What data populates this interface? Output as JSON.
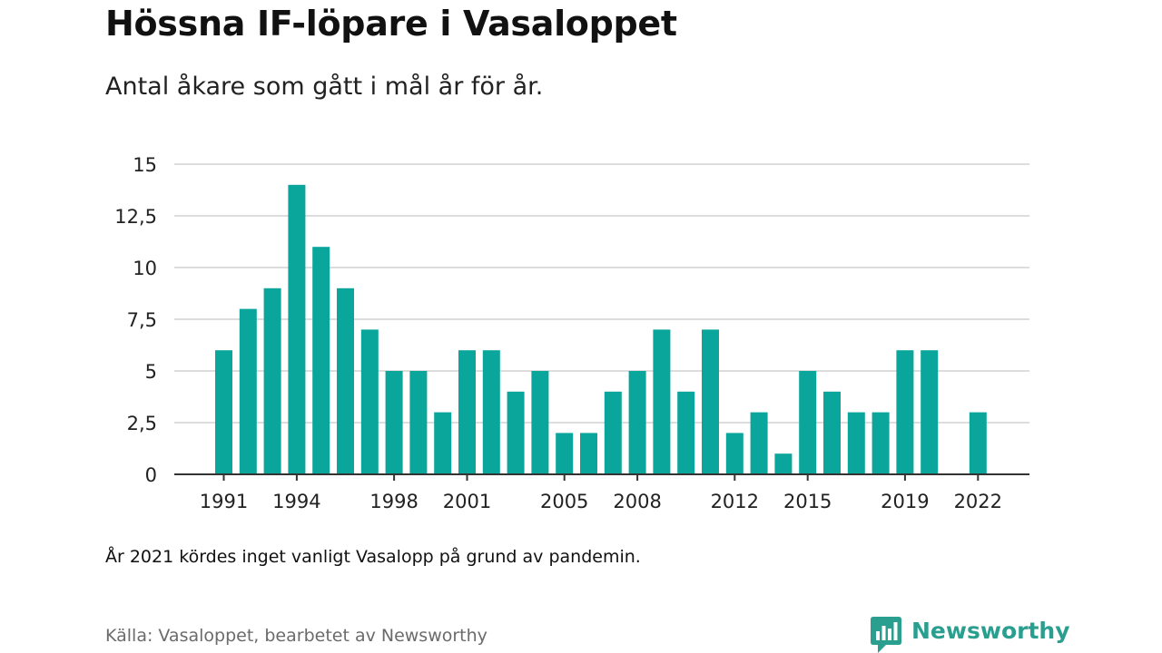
{
  "header": {
    "title": "Hössna IF-löpare i Vasaloppet",
    "subtitle": "Antal åkare som gått i mål år för år."
  },
  "footer": {
    "note": "År 2021 kördes inget vanligt Vasalopp på grund av pandemin.",
    "source": "Källa: Vasaloppet, bearbetet av Newsworthy",
    "brand": "Newsworthy"
  },
  "colors": {
    "bar": "#0aa69c",
    "grid": "#dddddd",
    "axis": "#333333",
    "brand": "#2a9f8f"
  },
  "chart_data": {
    "type": "bar",
    "title": "Hössna IF-löpare i Vasaloppet",
    "subtitle": "Antal åkare som gått i mål år för år.",
    "xlabel": "",
    "ylabel": "",
    "ylim": [
      0,
      15
    ],
    "grid": true,
    "legend": "none",
    "y_ticks": [
      0,
      2.5,
      5,
      7.5,
      10,
      12.5,
      15
    ],
    "y_tick_labels": [
      "0",
      "2,5",
      "5",
      "7,5",
      "10",
      "12,5",
      "15"
    ],
    "x_tick_labels": [
      "1991",
      "1994",
      "1998",
      "2001",
      "2005",
      "2008",
      "2012",
      "2015",
      "2019",
      "2022"
    ],
    "categories": [
      "1991",
      "1992",
      "1993",
      "1994",
      "1995",
      "1996",
      "1997",
      "1998",
      "1999",
      "2000",
      "2001",
      "2002",
      "2003",
      "2004",
      "2005",
      "2006",
      "2007",
      "2008",
      "2009",
      "2010",
      "2011",
      "2012",
      "2013",
      "2014",
      "2015",
      "2016",
      "2017",
      "2018",
      "2019",
      "2020",
      "2021",
      "2022"
    ],
    "values": [
      6,
      8,
      9,
      14,
      11,
      9,
      7,
      5,
      5,
      3,
      6,
      6,
      4,
      5,
      2,
      2,
      4,
      5,
      7,
      4,
      7,
      2,
      3,
      1,
      5,
      4,
      3,
      3,
      6,
      6,
      null,
      3
    ]
  }
}
